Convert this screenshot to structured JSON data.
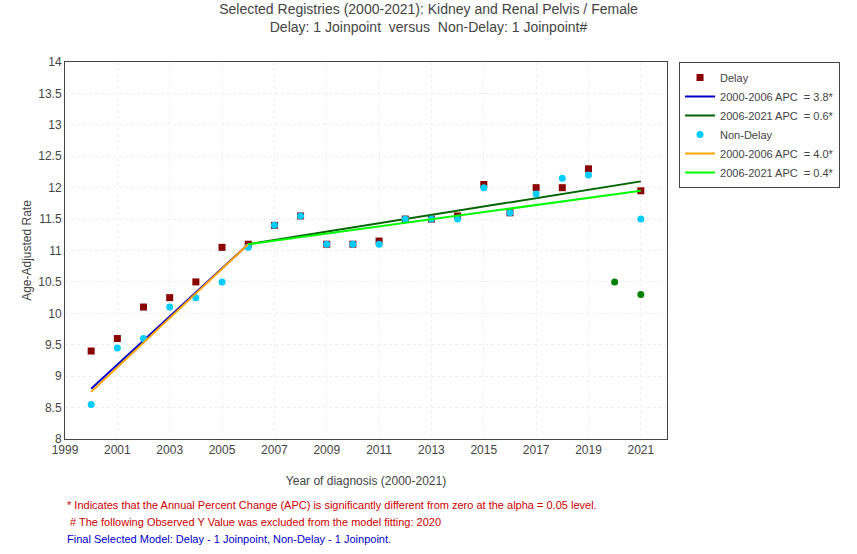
{
  "chart_data": {
    "type": "scatter",
    "title": "Selected Registries (2000-2021): Kidney and Renal Pelvis / Female",
    "subtitle": "Delay: 1 Joinpoint  versus  Non-Delay: 1 Joinpoint#",
    "x_label": "Year of diagnosis (2000-2021)",
    "y_label": "Age-Adjusted Rate",
    "xlim": [
      1999,
      2022
    ],
    "ylim": [
      8,
      14
    ],
    "xticks": [
      1999,
      2001,
      2003,
      2005,
      2007,
      2009,
      2011,
      2013,
      2015,
      2017,
      2019,
      2021
    ],
    "yticks": [
      8,
      8.5,
      9,
      9.5,
      10,
      10.5,
      11,
      11.5,
      12,
      12.5,
      13,
      13.5,
      14
    ],
    "grid": true,
    "legend": "right",
    "series": [
      {
        "name": "Delay",
        "type": "scatter",
        "marker": "square",
        "color": "#8B0000",
        "x": [
          2000,
          2001,
          2002,
          2003,
          2004,
          2005,
          2006,
          2007,
          2008,
          2009,
          2010,
          2011,
          2012,
          2013,
          2014,
          2015,
          2016,
          2017,
          2018,
          2019,
          2021
        ],
        "values": [
          9.4,
          9.6,
          10.1,
          10.25,
          10.5,
          11.05,
          11.1,
          11.4,
          11.55,
          11.1,
          11.1,
          11.15,
          11.5,
          11.5,
          11.55,
          12.05,
          11.6,
          12.0,
          12.0,
          12.3,
          11.95
        ]
      },
      {
        "name": "2000-2006 APC  = 3.8*",
        "type": "line",
        "color": "#0000CD",
        "x": [
          2000,
          2006
        ],
        "values": [
          8.8,
          11.1
        ]
      },
      {
        "name": "2006-2021 APC  = 0.6*",
        "type": "line",
        "color": "#006400",
        "x": [
          2006,
          2021
        ],
        "values": [
          11.1,
          12.1
        ]
      },
      {
        "name": "Non-Delay",
        "type": "scatter",
        "marker": "circle",
        "color": "#00CCFF",
        "x": [
          2000,
          2001,
          2002,
          2003,
          2004,
          2005,
          2006,
          2007,
          2008,
          2009,
          2010,
          2011,
          2012,
          2013,
          2014,
          2015,
          2016,
          2017,
          2018,
          2019,
          2021
        ],
        "values": [
          8.55,
          9.45,
          9.6,
          10.1,
          10.25,
          10.5,
          11.05,
          11.4,
          11.55,
          11.1,
          11.1,
          11.1,
          11.5,
          11.5,
          11.5,
          12.0,
          11.6,
          11.9,
          12.15,
          12.2,
          11.5
        ]
      },
      {
        "name": "2000-2006 APC  = 4.0*",
        "type": "line",
        "color": "#FFA500",
        "x": [
          2000,
          2006
        ],
        "values": [
          8.75,
          11.1
        ]
      },
      {
        "name": "2006-2021 APC  = 0.4*",
        "type": "line",
        "color": "#00FF00",
        "x": [
          2006,
          2021
        ],
        "values": [
          11.1,
          11.95
        ]
      },
      {
        "type": "scatter",
        "marker": "circle",
        "color": "#008000",
        "x": [
          2020,
          2021
        ],
        "values": [
          10.5,
          10.3
        ]
      }
    ],
    "annotations": [
      {
        "text": "* Indicates that the Annual Percent Change (APC) is significantly different from zero at the alpha = 0.05 level.",
        "color": "#CC0000"
      },
      {
        "text": " # The following Observed Y Value was excluded from the model fitting: 2020",
        "color": "#CC0000"
      },
      {
        "text": "Final Selected Model: Delay - 1 Joinpoint, Non-Delay - 1 Joinpoint.",
        "color": "#0000CC"
      }
    ]
  }
}
